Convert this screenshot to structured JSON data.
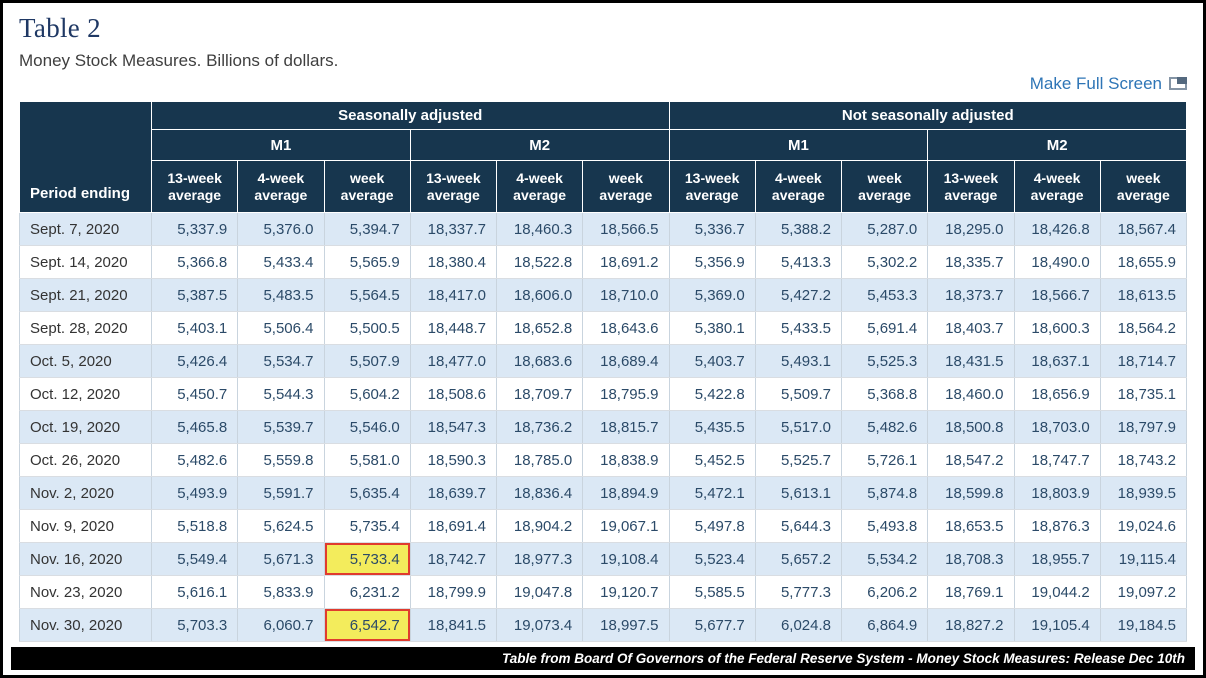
{
  "page": {
    "title": "Table 2",
    "subtitle": "Money Stock Measures. Billions of dollars.",
    "fullscreen_link": "Make Full Screen",
    "footer_credit": "Table from Board Of Governors of the Federal Reserve System - Money Stock Measures: Release Dec 10th"
  },
  "colors": {
    "header_bg": "#17364E",
    "alt_row_bg": "#DBE8F5",
    "highlight_bg": "#F3EC5C",
    "highlight_border": "#E03B2E",
    "link_blue": "#2E75B6",
    "title_navy": "#1F3864",
    "value_text": "#2B4A68"
  },
  "chart_data": {
    "type": "table",
    "title": "Table 2",
    "subtitle": "Money Stock Measures. Billions of dollars.",
    "period_header": "Period ending",
    "group_headers": [
      "Seasonally adjusted",
      "Not seasonally adjusted"
    ],
    "aggregate_headers": [
      "M1",
      "M2",
      "M1",
      "M2"
    ],
    "measure_headers": [
      "13-week average",
      "4-week average",
      "week average"
    ],
    "columns": [
      "Period ending",
      "Seasonally adjusted M1 13-week average",
      "Seasonally adjusted M1 4-week average",
      "Seasonally adjusted M1 week average",
      "Seasonally adjusted M2 13-week average",
      "Seasonally adjusted M2 4-week average",
      "Seasonally adjusted M2 week average",
      "Not seasonally adjusted M1 13-week average",
      "Not seasonally adjusted M1 4-week average",
      "Not seasonally adjusted M1 week average",
      "Not seasonally adjusted M2 13-week average",
      "Not seasonally adjusted M2 4-week average",
      "Not seasonally adjusted M2 week average"
    ],
    "rows": [
      {
        "period": "Sept. 7, 2020",
        "values": [
          "5,337.9",
          "5,376.0",
          "5,394.7",
          "18,337.7",
          "18,460.3",
          "18,566.5",
          "5,336.7",
          "5,388.2",
          "5,287.0",
          "18,295.0",
          "18,426.8",
          "18,567.4"
        ]
      },
      {
        "period": "Sept. 14, 2020",
        "values": [
          "5,366.8",
          "5,433.4",
          "5,565.9",
          "18,380.4",
          "18,522.8",
          "18,691.2",
          "5,356.9",
          "5,413.3",
          "5,302.2",
          "18,335.7",
          "18,490.0",
          "18,655.9"
        ]
      },
      {
        "period": "Sept. 21, 2020",
        "values": [
          "5,387.5",
          "5,483.5",
          "5,564.5",
          "18,417.0",
          "18,606.0",
          "18,710.0",
          "5,369.0",
          "5,427.2",
          "5,453.3",
          "18,373.7",
          "18,566.7",
          "18,613.5"
        ]
      },
      {
        "period": "Sept. 28, 2020",
        "values": [
          "5,403.1",
          "5,506.4",
          "5,500.5",
          "18,448.7",
          "18,652.8",
          "18,643.6",
          "5,380.1",
          "5,433.5",
          "5,691.4",
          "18,403.7",
          "18,600.3",
          "18,564.2"
        ]
      },
      {
        "period": "Oct. 5, 2020",
        "values": [
          "5,426.4",
          "5,534.7",
          "5,507.9",
          "18,477.0",
          "18,683.6",
          "18,689.4",
          "5,403.7",
          "5,493.1",
          "5,525.3",
          "18,431.5",
          "18,637.1",
          "18,714.7"
        ]
      },
      {
        "period": "Oct. 12, 2020",
        "values": [
          "5,450.7",
          "5,544.3",
          "5,604.2",
          "18,508.6",
          "18,709.7",
          "18,795.9",
          "5,422.8",
          "5,509.7",
          "5,368.8",
          "18,460.0",
          "18,656.9",
          "18,735.1"
        ]
      },
      {
        "period": "Oct. 19, 2020",
        "values": [
          "5,465.8",
          "5,539.7",
          "5,546.0",
          "18,547.3",
          "18,736.2",
          "18,815.7",
          "5,435.5",
          "5,517.0",
          "5,482.6",
          "18,500.8",
          "18,703.0",
          "18,797.9"
        ]
      },
      {
        "period": "Oct. 26, 2020",
        "values": [
          "5,482.6",
          "5,559.8",
          "5,581.0",
          "18,590.3",
          "18,785.0",
          "18,838.9",
          "5,452.5",
          "5,525.7",
          "5,726.1",
          "18,547.2",
          "18,747.7",
          "18,743.2"
        ]
      },
      {
        "period": "Nov. 2, 2020",
        "values": [
          "5,493.9",
          "5,591.7",
          "5,635.4",
          "18,639.7",
          "18,836.4",
          "18,894.9",
          "5,472.1",
          "5,613.1",
          "5,874.8",
          "18,599.8",
          "18,803.9",
          "18,939.5"
        ]
      },
      {
        "period": "Nov. 9, 2020",
        "values": [
          "5,518.8",
          "5,624.5",
          "5,735.4",
          "18,691.4",
          "18,904.2",
          "19,067.1",
          "5,497.8",
          "5,644.3",
          "5,493.8",
          "18,653.5",
          "18,876.3",
          "19,024.6"
        ]
      },
      {
        "period": "Nov. 16, 2020",
        "values": [
          "5,549.4",
          "5,671.3",
          "5,733.4",
          "18,742.7",
          "18,977.3",
          "19,108.4",
          "5,523.4",
          "5,657.2",
          "5,534.2",
          "18,708.3",
          "18,955.7",
          "19,115.4"
        ]
      },
      {
        "period": "Nov. 23, 2020",
        "values": [
          "5,616.1",
          "5,833.9",
          "6,231.2",
          "18,799.9",
          "19,047.8",
          "19,120.7",
          "5,585.5",
          "5,777.3",
          "6,206.2",
          "18,769.1",
          "19,044.2",
          "19,097.2"
        ]
      },
      {
        "period": "Nov. 30, 2020",
        "values": [
          "5,703.3",
          "6,060.7",
          "6,542.7",
          "18,841.5",
          "19,073.4",
          "18,997.5",
          "5,677.7",
          "6,024.8",
          "6,864.9",
          "18,827.2",
          "19,105.4",
          "19,184.5"
        ]
      }
    ],
    "highlighted_cells": [
      {
        "row": 10,
        "col": 2,
        "period": "Nov. 16, 2020",
        "column": "Seasonally adjusted M1 week average",
        "value": "5,733.4"
      },
      {
        "row": 12,
        "col": 2,
        "period": "Nov. 30, 2020",
        "column": "Seasonally adjusted M1 week average",
        "value": "6,542.7"
      }
    ],
    "layout_hints": {
      "alternating_rows": true,
      "first_row_shaded": true,
      "values_format": "thousands-comma, one decimal"
    }
  }
}
